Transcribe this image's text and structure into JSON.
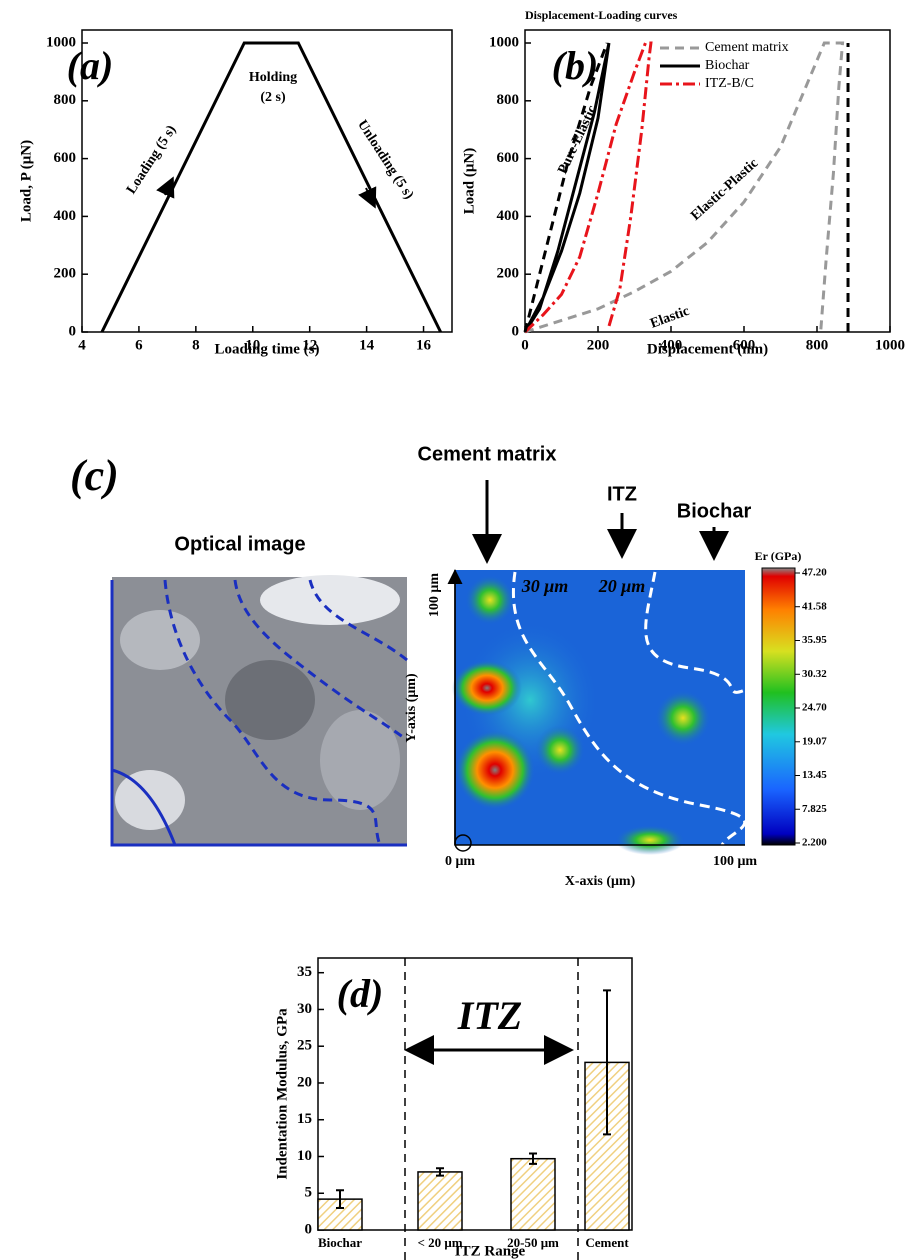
{
  "chart_data": [
    {
      "type": "line",
      "panel_label": "(a)",
      "x_label": "Loading time (s)",
      "y_label": "Load, P (μN)",
      "xlim": [
        4,
        17
      ],
      "xticks": [
        4,
        6,
        8,
        10,
        12,
        14,
        16
      ],
      "ylim": [
        0,
        1045
      ],
      "yticks": [
        0,
        200,
        400,
        600,
        800,
        1000
      ],
      "series": [
        {
          "color": "#000000",
          "dash": "solid",
          "x": [
            4.7,
            4.9,
            9.7,
            11.6,
            16.6
          ],
          "values": [
            0,
            40,
            1000,
            1000,
            0
          ]
        }
      ],
      "annotations": [
        "Loading (5 s)",
        "Holding",
        "(2 s)",
        "Unloading (5 s)"
      ]
    },
    {
      "type": "line",
      "title": "Displacement-Loading curves",
      "panel_label": "(b)",
      "x_label": "Displacement (nm)",
      "y_label": "Load (μN)",
      "xlim": [
        0,
        1000
      ],
      "xticks": [
        0,
        200,
        400,
        600,
        800,
        1000
      ],
      "ylim": [
        0,
        1045
      ],
      "yticks": [
        0,
        200,
        400,
        600,
        800,
        1000
      ],
      "legend": "upper right",
      "series": [
        {
          "name": "Cement matrix",
          "color": "#999999",
          "dash": "dashed",
          "x": [
            0,
            100,
            200,
            300,
            400,
            500,
            600,
            700,
            780,
            820,
            870,
            860,
            845,
            825,
            810
          ],
          "values": [
            0,
            40,
            80,
            140,
            210,
            310,
            450,
            640,
            880,
            1000,
            1000,
            850,
            550,
            250,
            0
          ]
        },
        {
          "name": "Biochar",
          "color": "#000000",
          "dash": "solid",
          "x": [
            0,
            50,
            100,
            150,
            200,
            230,
            190,
            140,
            90,
            40,
            0
          ],
          "values": [
            0,
            120,
            280,
            480,
            740,
            1000,
            760,
            520,
            280,
            80,
            0
          ]
        },
        {
          "name": "ITZ-B/C",
          "color": "#e8141b",
          "dash": "dash-dot",
          "x": [
            0,
            50,
            100,
            150,
            200,
            250,
            300,
            330,
            345,
            340,
            320,
            290,
            260,
            230
          ],
          "values": [
            0,
            60,
            130,
            260,
            480,
            720,
            900,
            1000,
            1000,
            950,
            700,
            400,
            150,
            20
          ]
        },
        {
          "color": "#000000",
          "dash": "dashed",
          "x": [
            0,
            60,
            120,
            180,
            225
          ],
          "values": [
            0,
            300,
            600,
            850,
            1000
          ]
        },
        {
          "color": "#000000",
          "dash": "dashed",
          "x": [
            885,
            885
          ],
          "values": [
            0,
            1000
          ]
        }
      ],
      "annotations": [
        "Pure-Elastic",
        "Elastic-Plastic",
        "Elastic"
      ]
    },
    {
      "type": "bar",
      "panel_label": "(d)",
      "x_label": "ITZ Range",
      "y_label": "Indentation Modulus, GPa",
      "categories": [
        "Biochar",
        "< 20 μm",
        "20-50 μm",
        "Cement"
      ],
      "values": [
        4.2,
        7.9,
        9.7,
        22.8
      ],
      "errors": [
        1.2,
        0.5,
        0.7,
        9.8
      ],
      "color": "#f0d080",
      "ylim": [
        0,
        37
      ],
      "yticks": [
        0,
        5,
        10,
        15,
        20,
        25,
        30,
        35
      ],
      "annotations": [
        "ITZ"
      ]
    }
  ],
  "panel_c": {
    "panel_label": "(c)",
    "optical_title": "Optical image",
    "regions": [
      "Cement matrix",
      "ITZ",
      "Biochar"
    ],
    "widths": [
      "30 μm",
      "20 μm"
    ],
    "y_axis_label": "Y-axis (μm)",
    "x_axis_label": "X-axis (μm)",
    "y_top": "100 μm",
    "x_left": "0 μm",
    "x_right": "100 μm",
    "colorbar": {
      "title": "Er (GPa)",
      "lim": [
        2.2,
        47.2
      ],
      "ticks": [
        {
          "value": 47.2,
          "label": "47.20"
        },
        {
          "value": 41.58,
          "label": "41.58"
        },
        {
          "value": 35.95,
          "label": "35.95"
        },
        {
          "value": 30.32,
          "label": "30.32"
        },
        {
          "value": 24.7,
          "label": "24.70"
        },
        {
          "value": 19.07,
          "label": "19.07"
        },
        {
          "value": 13.45,
          "label": "13.45"
        },
        {
          "value": 7.825,
          "label": "7.825"
        },
        {
          "value": 2.2,
          "label": "2.200"
        }
      ]
    }
  }
}
